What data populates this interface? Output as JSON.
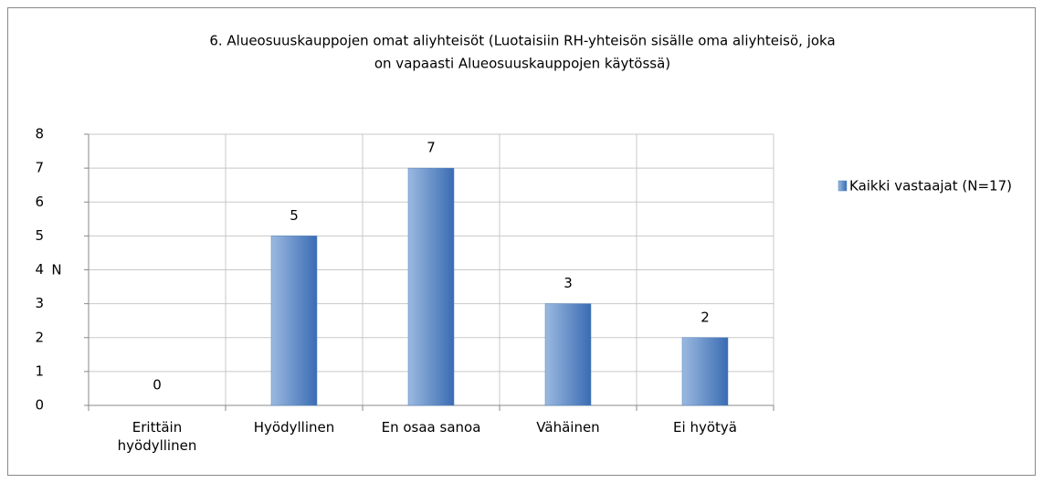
{
  "chart_data": {
    "type": "bar",
    "title": [
      "6. Alueosuuskauppojen omat aliyhteisöt  (Luotaisiin RH-yhteisön sisälle oma aliyhteisö, joka",
      "on vapaasti Alueosuuskauppojen käytössä)"
    ],
    "y_label": "N",
    "categories": [
      "Erittäin hyödyllinen",
      "Hyödyllinen",
      "En osaa sanoa",
      "Vähäinen",
      "Ei hyötyä"
    ],
    "series": [
      {
        "name": "Kaikki vastaajat (N=17)",
        "color": "#4f81bd",
        "values": [
          0,
          5,
          7,
          3,
          2
        ]
      }
    ],
    "ylim": [
      0,
      8
    ],
    "yticks": [
      0,
      1,
      2,
      3,
      4,
      5,
      6,
      7,
      8
    ],
    "grid": true,
    "legend": "right"
  }
}
